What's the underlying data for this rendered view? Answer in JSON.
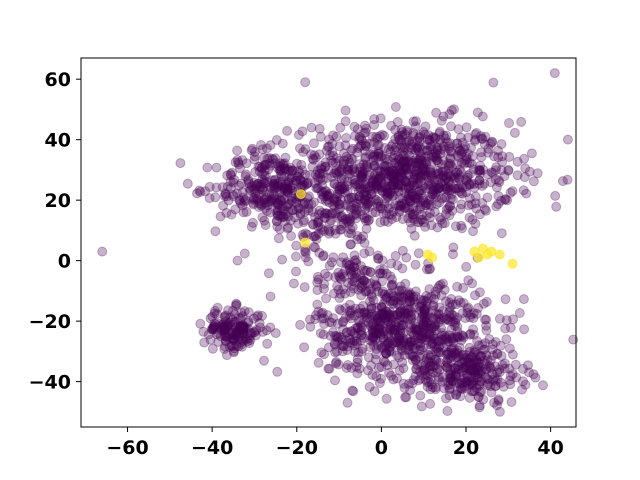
{
  "chart_data": {
    "type": "scatter",
    "title": "",
    "xlabel": "",
    "ylabel": "",
    "xlim": [
      -71,
      46
    ],
    "ylim": [
      -55,
      67
    ],
    "x_ticks": [
      -60,
      -40,
      -20,
      0,
      20,
      40
    ],
    "y_ticks": [
      -40,
      -20,
      0,
      20,
      40,
      60
    ],
    "x_tick_labels": [
      "−60",
      "−40",
      "−20",
      "0",
      "20",
      "40"
    ],
    "y_tick_labels": [
      "−40",
      "−20",
      "0",
      "20",
      "40",
      "60"
    ],
    "grid": false,
    "legend": "none",
    "marker_alpha": 0.3,
    "colors": {
      "class_0": "#440154",
      "class_1": "#fde725",
      "axes": "#000000",
      "background": "#ffffff"
    },
    "clusters": [
      {
        "class": 0,
        "center": [
          5,
          28
        ],
        "spread": [
          13,
          9
        ],
        "count": 950
      },
      {
        "class": 0,
        "center": [
          -27,
          24
        ],
        "spread": [
          6,
          6
        ],
        "count": 240
      },
      {
        "class": 0,
        "center": [
          -13,
          15
        ],
        "spread": [
          6,
          6
        ],
        "count": 120
      },
      {
        "class": 0,
        "center": [
          -35,
          -23
        ],
        "spread": [
          3.5,
          3.5
        ],
        "count": 160
      },
      {
        "class": 0,
        "center": [
          5,
          -22
        ],
        "spread": [
          10,
          8
        ],
        "count": 650
      },
      {
        "class": 0,
        "center": [
          20,
          -37
        ],
        "spread": [
          7,
          5
        ],
        "count": 260
      },
      {
        "class": 0,
        "center": [
          -5,
          -5
        ],
        "spread": [
          7,
          4
        ],
        "count": 90
      }
    ],
    "points": [
      {
        "x": -18,
        "y": 59,
        "class": 0
      },
      {
        "x": 41,
        "y": 62,
        "class": 0
      },
      {
        "x": -66,
        "y": 3,
        "class": 0
      },
      {
        "x": -8,
        "y": -47,
        "class": 0
      },
      {
        "x": 30,
        "y": 30,
        "class": 0
      },
      {
        "x": -34,
        "y": 0,
        "class": 0
      },
      {
        "x": 31,
        "y": 23,
        "class": 0
      },
      {
        "x": 22,
        "y": 3,
        "class": 1
      },
      {
        "x": 24,
        "y": 4,
        "class": 1
      },
      {
        "x": 26,
        "y": 3,
        "class": 1
      },
      {
        "x": 28,
        "y": 2,
        "class": 1
      },
      {
        "x": 25,
        "y": 2,
        "class": 1
      },
      {
        "x": 23,
        "y": 1,
        "class": 1
      },
      {
        "x": 31,
        "y": -1,
        "class": 1
      },
      {
        "x": 11,
        "y": 2,
        "class": 1
      },
      {
        "x": 12,
        "y": 1,
        "class": 1
      },
      {
        "x": -18,
        "y": 6,
        "class": 1
      },
      {
        "x": -19,
        "y": 22,
        "class": 1
      }
    ]
  }
}
